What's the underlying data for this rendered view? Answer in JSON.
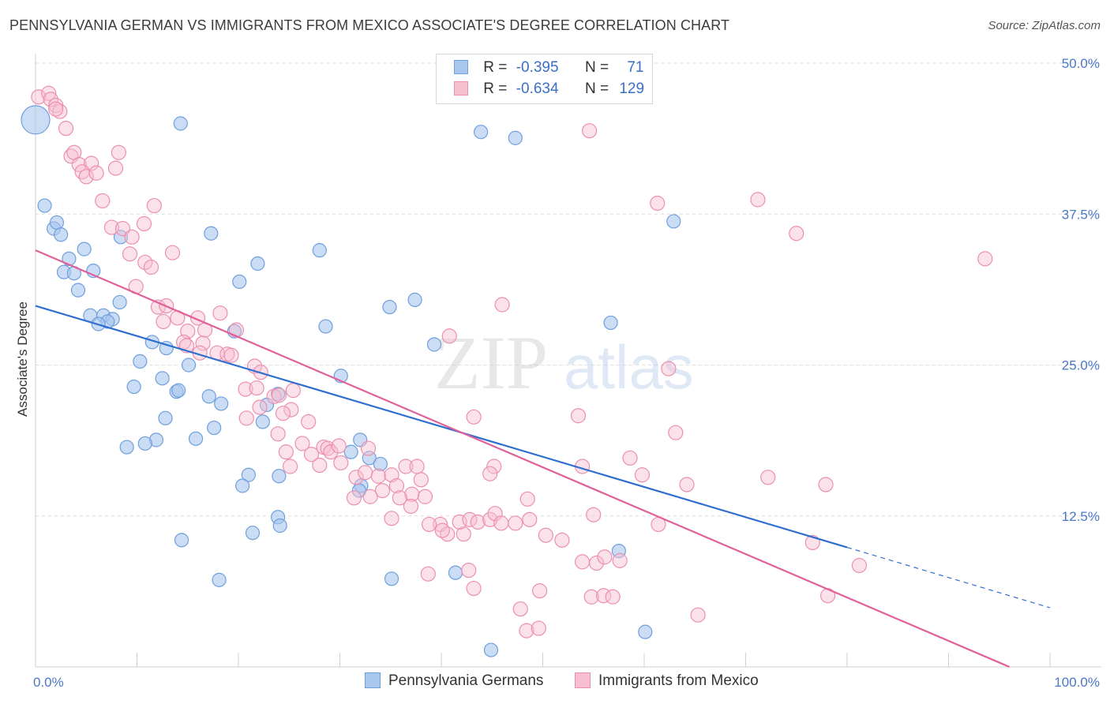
{
  "header": {
    "title": "PENNSYLVANIA GERMAN VS IMMIGRANTS FROM MEXICO ASSOCIATE'S DEGREE CORRELATION CHART",
    "source": "Source: ZipAtlas.com"
  },
  "watermark": {
    "zip": "ZIP",
    "atlas": "atlas"
  },
  "legend": {
    "rows": [
      {
        "r_label": "R =",
        "r_value": "-0.395",
        "n_label": "N =",
        "n_value": "71"
      },
      {
        "r_label": "R =",
        "r_value": "-0.634",
        "n_label": "N =",
        "n_value": "129"
      }
    ]
  },
  "bottom_legend": {
    "series1": "Pennsylvania Germans",
    "series2": "Immigrants from Mexico"
  },
  "colors": {
    "blue_fill": "#a9c7ee",
    "blue_stroke": "#6f9fdc",
    "blue_line": "#2f6fd0",
    "pink_fill": "#f7bfd0",
    "pink_stroke": "#ec8fae",
    "pink_line": "#e0609a",
    "grid": "#dddddd",
    "tick_text": "#4a78c8"
  },
  "chart_data": {
    "type": "scatter",
    "title": "PENNSYLVANIA GERMAN VS IMMIGRANTS FROM MEXICO ASSOCIATE'S DEGREE CORRELATION CHART",
    "xlabel": "",
    "ylabel": "Associate's Degree",
    "xlim": [
      0,
      100
    ],
    "ylim": [
      0,
      50
    ],
    "x_tick_labels": [
      {
        "value": 0,
        "label": "0.0%"
      },
      {
        "value": 100,
        "label": "100.0%"
      }
    ],
    "y_ticks": [
      {
        "value": 12.5,
        "label": "12.5%"
      },
      {
        "value": 25,
        "label": "25.0%"
      },
      {
        "value": 37.5,
        "label": "37.5%"
      },
      {
        "value": 50,
        "label": "50.0%"
      }
    ],
    "x_minor_ticks": [
      10,
      20,
      30,
      40,
      50,
      60,
      70,
      80,
      90,
      100
    ],
    "series": [
      {
        "name": "Pennsylvania Germans",
        "R": -0.395,
        "N": 71,
        "trend": {
          "x0": 0,
          "y0": 29.9,
          "x1": 80,
          "y1": 9.9,
          "dash_to_x": 100,
          "dash_to_y": 4.9
        },
        "points": [
          [
            0,
            45.3
          ],
          [
            0.9,
            38.2
          ],
          [
            1.8,
            36.3
          ],
          [
            2.1,
            36.8
          ],
          [
            2.5,
            35.8
          ],
          [
            4.8,
            34.6
          ],
          [
            3.3,
            33.8
          ],
          [
            2.8,
            32.7
          ],
          [
            3.8,
            32.6
          ],
          [
            5.7,
            32.8
          ],
          [
            4.2,
            31.2
          ],
          [
            8.4,
            35.6
          ],
          [
            8.3,
            30.2
          ],
          [
            5.4,
            29.1
          ],
          [
            6.7,
            29.1
          ],
          [
            7.6,
            28.8
          ],
          [
            7.1,
            28.6
          ],
          [
            6.2,
            28.4
          ],
          [
            11.5,
            26.9
          ],
          [
            12.9,
            26.4
          ],
          [
            10.3,
            25.3
          ],
          [
            12.5,
            23.9
          ],
          [
            9.7,
            23.2
          ],
          [
            13.9,
            22.8
          ],
          [
            14.1,
            22.9
          ],
          [
            17.1,
            22.4
          ],
          [
            14.3,
            45.0
          ],
          [
            17.3,
            35.9
          ],
          [
            20.1,
            31.9
          ],
          [
            21.9,
            33.4
          ],
          [
            23.9,
            22.6
          ],
          [
            18.3,
            21.8
          ],
          [
            12.8,
            20.6
          ],
          [
            22.8,
            21.7
          ],
          [
            11.9,
            18.8
          ],
          [
            15.8,
            18.9
          ],
          [
            10.8,
            18.5
          ],
          [
            17.6,
            19.8
          ],
          [
            9.0,
            18.2
          ],
          [
            28.0,
            34.5
          ],
          [
            28.6,
            28.2
          ],
          [
            30.1,
            24.1
          ],
          [
            31.1,
            17.8
          ],
          [
            32.0,
            18.8
          ],
          [
            34.9,
            29.8
          ],
          [
            32.1,
            15.0
          ],
          [
            31.9,
            14.6
          ],
          [
            32.9,
            17.3
          ],
          [
            34.0,
            16.8
          ],
          [
            37.4,
            30.4
          ],
          [
            39.3,
            26.7
          ],
          [
            41.4,
            7.8
          ],
          [
            43.9,
            44.3
          ],
          [
            47.3,
            43.8
          ],
          [
            56.7,
            28.5
          ],
          [
            57.5,
            9.6
          ],
          [
            62.9,
            36.9
          ],
          [
            21.0,
            15.9
          ],
          [
            20.4,
            15.0
          ],
          [
            24.0,
            15.8
          ],
          [
            23.9,
            12.4
          ],
          [
            18.1,
            7.2
          ],
          [
            21.4,
            11.1
          ],
          [
            24.1,
            11.7
          ],
          [
            14.4,
            10.5
          ],
          [
            44.9,
            1.4
          ],
          [
            60.1,
            2.9
          ],
          [
            35.1,
            7.3
          ],
          [
            15.1,
            25.0
          ],
          [
            19.6,
            27.8
          ],
          [
            22.4,
            20.3
          ]
        ]
      },
      {
        "name": "Immigrants from Mexico",
        "R": -0.634,
        "N": 129,
        "trend": {
          "x0": 0,
          "y0": 34.5,
          "x1": 96,
          "y1": 0
        },
        "points": [
          [
            0.3,
            47.2
          ],
          [
            1.3,
            47.5
          ],
          [
            1.5,
            47.0
          ],
          [
            2.0,
            46.5
          ],
          [
            2.4,
            46.0
          ],
          [
            2.0,
            46.2
          ],
          [
            3.0,
            44.6
          ],
          [
            3.5,
            42.3
          ],
          [
            3.8,
            42.6
          ],
          [
            4.3,
            41.6
          ],
          [
            5.5,
            41.7
          ],
          [
            4.6,
            41.0
          ],
          [
            5.0,
            40.6
          ],
          [
            6.0,
            40.9
          ],
          [
            7.9,
            41.3
          ],
          [
            8.2,
            42.6
          ],
          [
            6.6,
            38.6
          ],
          [
            11.7,
            38.2
          ],
          [
            7.5,
            36.4
          ],
          [
            8.6,
            36.3
          ],
          [
            9.5,
            35.6
          ],
          [
            10.7,
            36.7
          ],
          [
            9.3,
            34.2
          ],
          [
            10.8,
            33.5
          ],
          [
            11.4,
            33.1
          ],
          [
            13.5,
            34.3
          ],
          [
            9.9,
            31.5
          ],
          [
            12.1,
            29.8
          ],
          [
            12.9,
            29.9
          ],
          [
            14.0,
            28.9
          ],
          [
            16.0,
            28.9
          ],
          [
            12.6,
            28.6
          ],
          [
            18.2,
            29.3
          ],
          [
            15.0,
            27.8
          ],
          [
            16.7,
            27.9
          ],
          [
            19.8,
            27.9
          ],
          [
            14.6,
            26.9
          ],
          [
            14.9,
            26.6
          ],
          [
            16.5,
            26.8
          ],
          [
            16.2,
            26.0
          ],
          [
            17.9,
            26.0
          ],
          [
            18.9,
            25.9
          ],
          [
            19.3,
            25.8
          ],
          [
            21.6,
            24.9
          ],
          [
            22.2,
            24.4
          ],
          [
            20.7,
            23.0
          ],
          [
            21.8,
            23.1
          ],
          [
            23.5,
            22.4
          ],
          [
            25.4,
            22.9
          ],
          [
            24.0,
            22.5
          ],
          [
            22.1,
            21.5
          ],
          [
            25.2,
            21.3
          ],
          [
            24.4,
            21.0
          ],
          [
            20.8,
            20.6
          ],
          [
            26.9,
            20.3
          ],
          [
            23.9,
            19.3
          ],
          [
            26.3,
            18.5
          ],
          [
            28.4,
            18.2
          ],
          [
            28.8,
            18.1
          ],
          [
            27.2,
            17.6
          ],
          [
            29.1,
            17.8
          ],
          [
            29.9,
            18.3
          ],
          [
            24.7,
            17.8
          ],
          [
            25.1,
            16.6
          ],
          [
            28.0,
            16.7
          ],
          [
            30.1,
            16.9
          ],
          [
            32.8,
            18.1
          ],
          [
            31.6,
            15.7
          ],
          [
            33.8,
            15.8
          ],
          [
            32.5,
            16.1
          ],
          [
            35.1,
            15.9
          ],
          [
            36.5,
            16.6
          ],
          [
            37.6,
            16.6
          ],
          [
            35.6,
            15.0
          ],
          [
            37.1,
            14.3
          ],
          [
            34.2,
            14.6
          ],
          [
            35.9,
            14.0
          ],
          [
            31.4,
            14.0
          ],
          [
            33.0,
            14.1
          ],
          [
            38.4,
            14.1
          ],
          [
            37.0,
            13.3
          ],
          [
            35.1,
            12.3
          ],
          [
            39.9,
            11.8
          ],
          [
            38.8,
            11.8
          ],
          [
            40.6,
            11.0
          ],
          [
            40.1,
            11.3
          ],
          [
            42.2,
            11.0
          ],
          [
            41.8,
            12.0
          ],
          [
            42.8,
            12.2
          ],
          [
            43.6,
            12.0
          ],
          [
            44.8,
            12.2
          ],
          [
            45.3,
            12.7
          ],
          [
            45.9,
            11.9
          ],
          [
            47.3,
            11.9
          ],
          [
            48.7,
            12.2
          ],
          [
            48.5,
            13.9
          ],
          [
            50.3,
            10.9
          ],
          [
            51.9,
            10.5
          ],
          [
            55.0,
            12.6
          ],
          [
            53.9,
            8.7
          ],
          [
            55.3,
            8.6
          ],
          [
            56.1,
            9.1
          ],
          [
            57.6,
            8.8
          ],
          [
            59.8,
            15.9
          ],
          [
            61.4,
            11.8
          ],
          [
            62.4,
            24.7
          ],
          [
            63.1,
            19.4
          ],
          [
            77.9,
            15.1
          ],
          [
            81.2,
            8.4
          ],
          [
            78.1,
            5.9
          ],
          [
            43.2,
            6.5
          ],
          [
            49.7,
            6.3
          ],
          [
            54.8,
            5.8
          ],
          [
            56.0,
            5.9
          ],
          [
            56.9,
            5.8
          ],
          [
            48.4,
            3.0
          ],
          [
            49.6,
            3.2
          ],
          [
            47.8,
            4.8
          ],
          [
            54.6,
            44.4
          ],
          [
            61.3,
            38.4
          ],
          [
            71.2,
            38.7
          ],
          [
            75.0,
            35.9
          ],
          [
            93.6,
            33.8
          ],
          [
            46.0,
            30.0
          ],
          [
            40.8,
            27.4
          ],
          [
            43.2,
            20.7
          ],
          [
            53.5,
            20.8
          ],
          [
            53.9,
            16.6
          ],
          [
            45.2,
            16.6
          ],
          [
            58.6,
            17.3
          ],
          [
            38.0,
            15.5
          ],
          [
            44.8,
            16.0
          ],
          [
            64.2,
            15.1
          ],
          [
            72.2,
            15.7
          ],
          [
            76.6,
            10.3
          ],
          [
            65.3,
            4.3
          ],
          [
            42.7,
            8.0
          ],
          [
            38.7,
            7.7
          ]
        ]
      }
    ]
  }
}
